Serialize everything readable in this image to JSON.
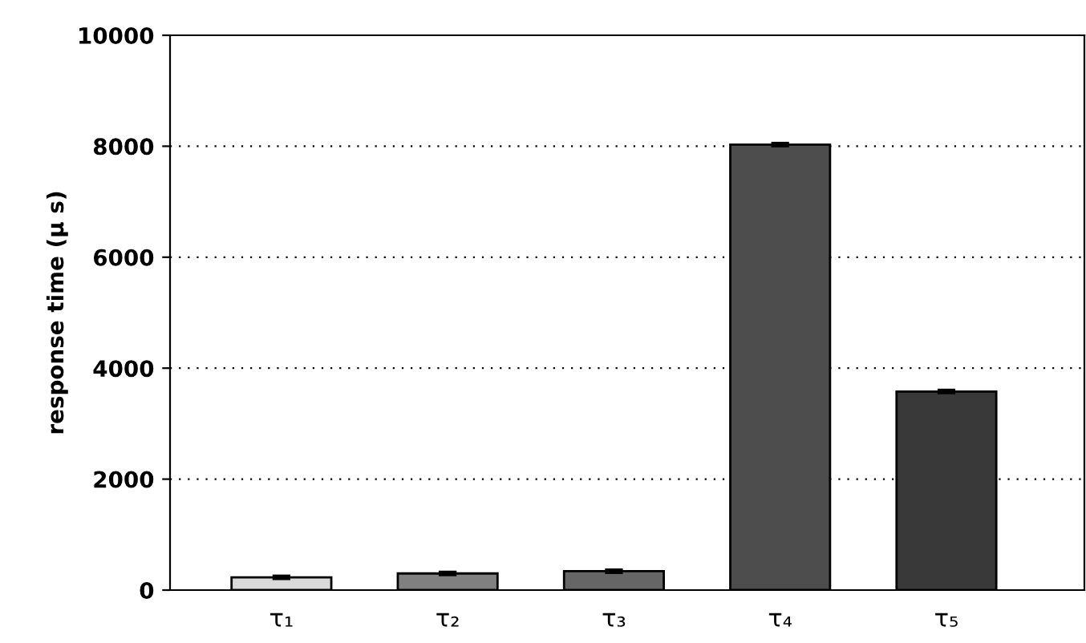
{
  "chart_data": {
    "type": "bar",
    "ylabel": "response time (μ s)",
    "categories": [
      "τ₁",
      "τ₂",
      "τ₃",
      "τ₄",
      "τ₅"
    ],
    "values": [
      230,
      300,
      340,
      8030,
      3580
    ],
    "errors": [
      30,
      30,
      30,
      30,
      30
    ],
    "colors": [
      "#d9d9d9",
      "#808080",
      "#666666",
      "#4d4d4d",
      "#393939"
    ],
    "ylim": [
      0,
      10000
    ],
    "yticks": [
      0,
      2000,
      4000,
      6000,
      8000,
      10000
    ],
    "grid": "y"
  }
}
